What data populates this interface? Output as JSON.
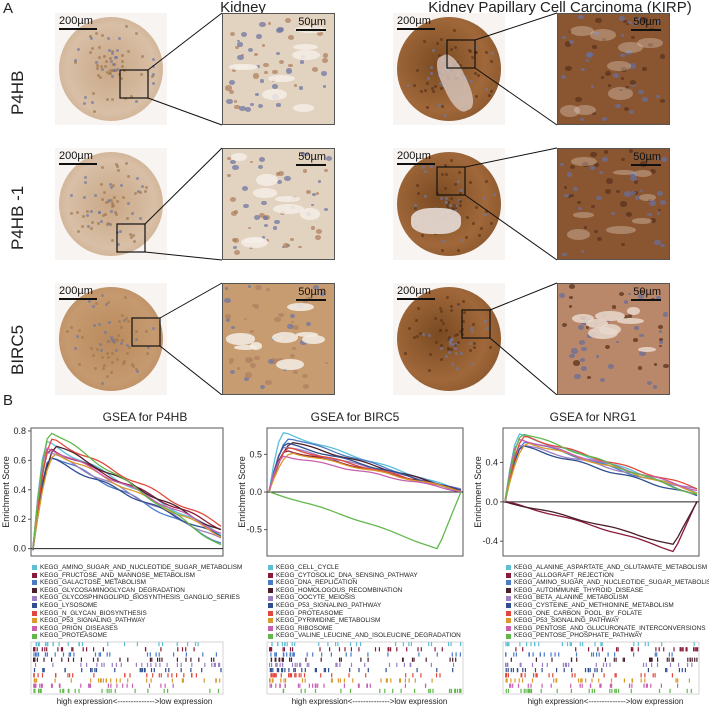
{
  "figure": {
    "panel_a_letter": "A",
    "panel_b_letter": "B",
    "col_titles": [
      "Kidney",
      "Kidney Papillary Cell Carcinoma (KIRP)"
    ],
    "row_labels": [
      "P4HB",
      "P4HB -1",
      "BIRC5"
    ],
    "scale_low": "200µm",
    "scale_high": "50µm",
    "stain_colors": {
      "kidney_tissue": "#c9a785",
      "kidney_bg": "#ebe3da",
      "tumor": "#7a4a22",
      "tumor_light": "#a0683a",
      "nuclei": "#6f77a3"
    }
  },
  "chart_data": [
    {
      "type": "line",
      "title": "GSEA for P4HB",
      "ylabel": "Enrichment Score",
      "ylim": [
        -0.05,
        0.82
      ],
      "yticks": [
        0.0,
        0.2,
        0.4,
        0.6,
        0.8
      ],
      "series": [
        {
          "name": "KEGG_AMINO_SUGAR_AND_NUCLEOTIDE_SUGAR_METABOLISM",
          "color": "#5bc0d6",
          "peak": 0.72,
          "end": 0.1
        },
        {
          "name": "KEGG_FRUCTOSE_AND_MANNOSE_METABOLISM",
          "color": "#8b1a3a",
          "peak": 0.68,
          "end": 0.14
        },
        {
          "name": "KEGG_GALACTOSE_METABOLISM",
          "color": "#4a7bc8",
          "peak": 0.63,
          "end": 0.04
        },
        {
          "name": "KEGG_GLYCOSAMINOGLYCAN_DEGRADATION",
          "color": "#4b1f2a",
          "peak": 0.7,
          "end": 0.12
        },
        {
          "name": "KEGG_GLYCOSPHINGOLIPID_BIOSYNTHESIS_GANGLIO_SERIES",
          "color": "#9b7fc2",
          "peak": 0.66,
          "end": 0.06
        },
        {
          "name": "KEGG_LYSOSOME",
          "color": "#2f4f8f",
          "peak": 0.61,
          "end": 0.08
        },
        {
          "name": "KEGG_N_GLYCAN_BIOSYNTHESIS",
          "color": "#e0483c",
          "peak": 0.74,
          "end": 0.16
        },
        {
          "name": "KEGG_P53_SIGNALING_PATHWAY",
          "color": "#d99a2b",
          "peak": 0.65,
          "end": 0.09
        },
        {
          "name": "KEGG_PRION_DISEASES",
          "color": "#c85fb0",
          "peak": 0.69,
          "end": 0.11
        },
        {
          "name": "KEGG_PROTEASOME",
          "color": "#62b84c",
          "peak": 0.8,
          "end": 0.02
        }
      ]
    },
    {
      "type": "line",
      "title": "GSEA for BIRC5",
      "ylabel": "Enrichment Score",
      "ylim": [
        -0.85,
        0.85
      ],
      "yticks": [
        -0.5,
        0.0,
        0.5
      ],
      "series": [
        {
          "name": "KEGG_CELL_CYCLE",
          "color": "#5bc0d6",
          "peak": 0.78,
          "end": 0.02
        },
        {
          "name": "KEGG_CYTOSOLIC_DNA_SENSING_PATHWAY",
          "color": "#8b1a3a",
          "peak": 0.55,
          "end": 0.03
        },
        {
          "name": "KEGG_DNA_REPLICATION",
          "color": "#4a7bc8",
          "peak": 0.72,
          "end": 0.01
        },
        {
          "name": "KEGG_HOMOLOGOUS_RECOMBINATION",
          "color": "#4b1f2a",
          "peak": 0.66,
          "end": 0.02
        },
        {
          "name": "KEGG_OOCYTE_MEIOSIS",
          "color": "#9b7fc2",
          "peak": 0.6,
          "end": 0.03
        },
        {
          "name": "KEGG_P53_SIGNALING_PATHWAY",
          "color": "#2f4f8f",
          "peak": 0.64,
          "end": 0.02
        },
        {
          "name": "KEGG_PROTEASOME",
          "color": "#e0483c",
          "peak": 0.58,
          "end": 0.01
        },
        {
          "name": "KEGG_PYRIMIDINE_METABOLISM",
          "color": "#d99a2b",
          "peak": 0.52,
          "end": 0.02
        },
        {
          "name": "KEGG_RIBOSOME",
          "color": "#c85fb0",
          "peak": 0.48,
          "end": 0.01
        },
        {
          "name": "KEGG_VALINE_LEUCINE_AND_ISOLEUCINE_DEGRADATION",
          "color": "#62b84c",
          "trough": -0.76,
          "end": 0.0
        }
      ]
    },
    {
      "type": "line",
      "title": "GSEA for NRG1",
      "ylabel": "Enrichment Score",
      "ylim": [
        -0.55,
        0.75
      ],
      "yticks": [
        -0.4,
        0.0,
        0.4
      ],
      "series": [
        {
          "name": "KEGG_ALANINE_ASPARTATE_AND_GLUTAMATE_METABOLISM",
          "color": "#5bc0d6",
          "peak": 0.68,
          "end": 0.1
        },
        {
          "name": "KEGG_ALLOGRAFT_REJECTION",
          "color": "#8b1a3a",
          "trough": -0.5,
          "end": 0.0
        },
        {
          "name": "KEGG_AMINO_SUGAR_AND_NUCLEOTIDE_SUGAR_METABOLISM",
          "color": "#4a7bc8",
          "peak": 0.62,
          "end": 0.08
        },
        {
          "name": "KEGG_AUTOIMMUNE_THYROID_DISEASE",
          "color": "#4b1f2a",
          "trough": -0.44,
          "end": 0.0
        },
        {
          "name": "KEGG_BETA_ALANINE_METABOLISM",
          "color": "#9b7fc2",
          "peak": 0.58,
          "end": 0.12
        },
        {
          "name": "KEGG_CYSTEINE_AND_METHIONINE_METABOLISM",
          "color": "#2f4f8f",
          "peak": 0.56,
          "end": 0.06
        },
        {
          "name": "KEGG_ONE_CARBON_POOL_BY_FOLATE",
          "color": "#e0483c",
          "peak": 0.66,
          "end": 0.14
        },
        {
          "name": "KEGG_P53_SIGNALING_PATHWAY",
          "color": "#d99a2b",
          "peak": 0.6,
          "end": 0.1
        },
        {
          "name": "KEGG_PENTOSE_AND_GLUCURONATE_INTERCONVERSIONS",
          "color": "#c85fb0",
          "peak": 0.64,
          "end": 0.12
        },
        {
          "name": "KEGG_PENTOSE_PHOSPHATE_PATHWAY",
          "color": "#62b84c",
          "peak": 0.7,
          "end": 0.07
        }
      ]
    }
  ],
  "expression_axis_label": "high expression<-------------->low expression"
}
